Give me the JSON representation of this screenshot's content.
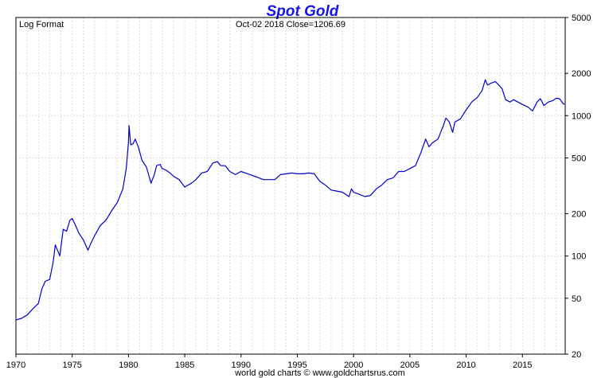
{
  "chart_data": {
    "type": "line",
    "title": "Spot Gold",
    "scale_label": "Log Format",
    "status_text": "Oct-02  2018   Close=1206.69",
    "footer": "world gold charts © www.goldchartsrus.com",
    "yscale": "log",
    "ylim": [
      20,
      5000
    ],
    "xlim": [
      1970,
      2018.8
    ],
    "yticks": [
      20,
      50,
      100,
      200,
      500,
      1000,
      2000,
      5000
    ],
    "ytick_labels": [
      "20",
      "50",
      "100",
      "200",
      "500",
      "1000",
      "2000",
      "5000"
    ],
    "xticks": [
      1970,
      1975,
      1980,
      1985,
      1990,
      1995,
      2000,
      2005,
      2010,
      2015
    ],
    "xtick_labels": [
      "1970",
      "1975",
      "1980",
      "1985",
      "1990",
      "1995",
      "2000",
      "2005",
      "2010",
      "2015"
    ],
    "grid": true,
    "line_color": "#0000cc",
    "series": [
      {
        "x": [
          1970.0,
          1970.5,
          1971.0,
          1971.5,
          1972.0,
          1972.3,
          1972.6,
          1973.0,
          1973.3,
          1973.5,
          1973.9,
          1974.2,
          1974.5,
          1974.8,
          1975.0,
          1975.3,
          1975.6,
          1976.0,
          1976.4,
          1976.7,
          1977.0,
          1977.5,
          1978.0,
          1978.5,
          1979.0,
          1979.5,
          1979.8,
          1980.0,
          1980.05,
          1980.2,
          1980.4,
          1980.6,
          1980.9,
          1981.2,
          1981.6,
          1982.0,
          1982.3,
          1982.5,
          1982.8,
          1983.0,
          1983.3,
          1983.7,
          1984.0,
          1984.5,
          1985.0,
          1985.3,
          1985.6,
          1986.0,
          1986.5,
          1987.0,
          1987.5,
          1987.9,
          1988.2,
          1988.6,
          1989.0,
          1989.5,
          1990.0,
          1990.4,
          1990.8,
          1991.2,
          1991.6,
          1992.0,
          1992.5,
          1993.0,
          1993.5,
          1994.0,
          1994.5,
          1995.0,
          1995.5,
          1996.0,
          1996.5,
          1997.0,
          1997.5,
          1998.0,
          1998.5,
          1999.0,
          1999.6,
          1999.8,
          2000.0,
          2000.5,
          2001.0,
          2001.5,
          2002.0,
          2002.5,
          2003.0,
          2003.5,
          2004.0,
          2004.5,
          2005.0,
          2005.5,
          2006.0,
          2006.4,
          2006.7,
          2007.0,
          2007.5,
          2008.0,
          2008.2,
          2008.5,
          2008.8,
          2009.0,
          2009.5,
          2010.0,
          2010.5,
          2011.0,
          2011.4,
          2011.7,
          2011.9,
          2012.2,
          2012.6,
          2012.9,
          2013.2,
          2013.5,
          2013.9,
          2014.2,
          2014.6,
          2015.0,
          2015.5,
          2015.9,
          2016.3,
          2016.6,
          2016.9,
          2017.3,
          2017.7,
          2018.0,
          2018.3,
          2018.6,
          2018.75
        ],
        "y": [
          35,
          36,
          38,
          42,
          46,
          58,
          66,
          68,
          90,
          120,
          100,
          155,
          150,
          180,
          185,
          165,
          145,
          130,
          110,
          125,
          140,
          165,
          180,
          210,
          240,
          300,
          420,
          650,
          850,
          620,
          630,
          680,
          590,
          480,
          430,
          330,
          380,
          440,
          450,
          420,
          410,
          390,
          370,
          350,
          310,
          320,
          330,
          350,
          390,
          400,
          460,
          470,
          440,
          440,
          400,
          380,
          400,
          390,
          380,
          370,
          360,
          350,
          350,
          350,
          380,
          385,
          390,
          385,
          385,
          390,
          385,
          340,
          320,
          295,
          290,
          285,
          265,
          300,
          285,
          275,
          265,
          270,
          300,
          320,
          350,
          360,
          400,
          400,
          420,
          440,
          550,
          680,
          600,
          640,
          680,
          860,
          960,
          900,
          760,
          900,
          950,
          1100,
          1250,
          1350,
          1500,
          1800,
          1650,
          1700,
          1750,
          1650,
          1550,
          1300,
          1250,
          1300,
          1250,
          1200,
          1150,
          1080,
          1250,
          1320,
          1180,
          1250,
          1280,
          1330,
          1320,
          1220,
          1206.69
        ]
      }
    ]
  }
}
